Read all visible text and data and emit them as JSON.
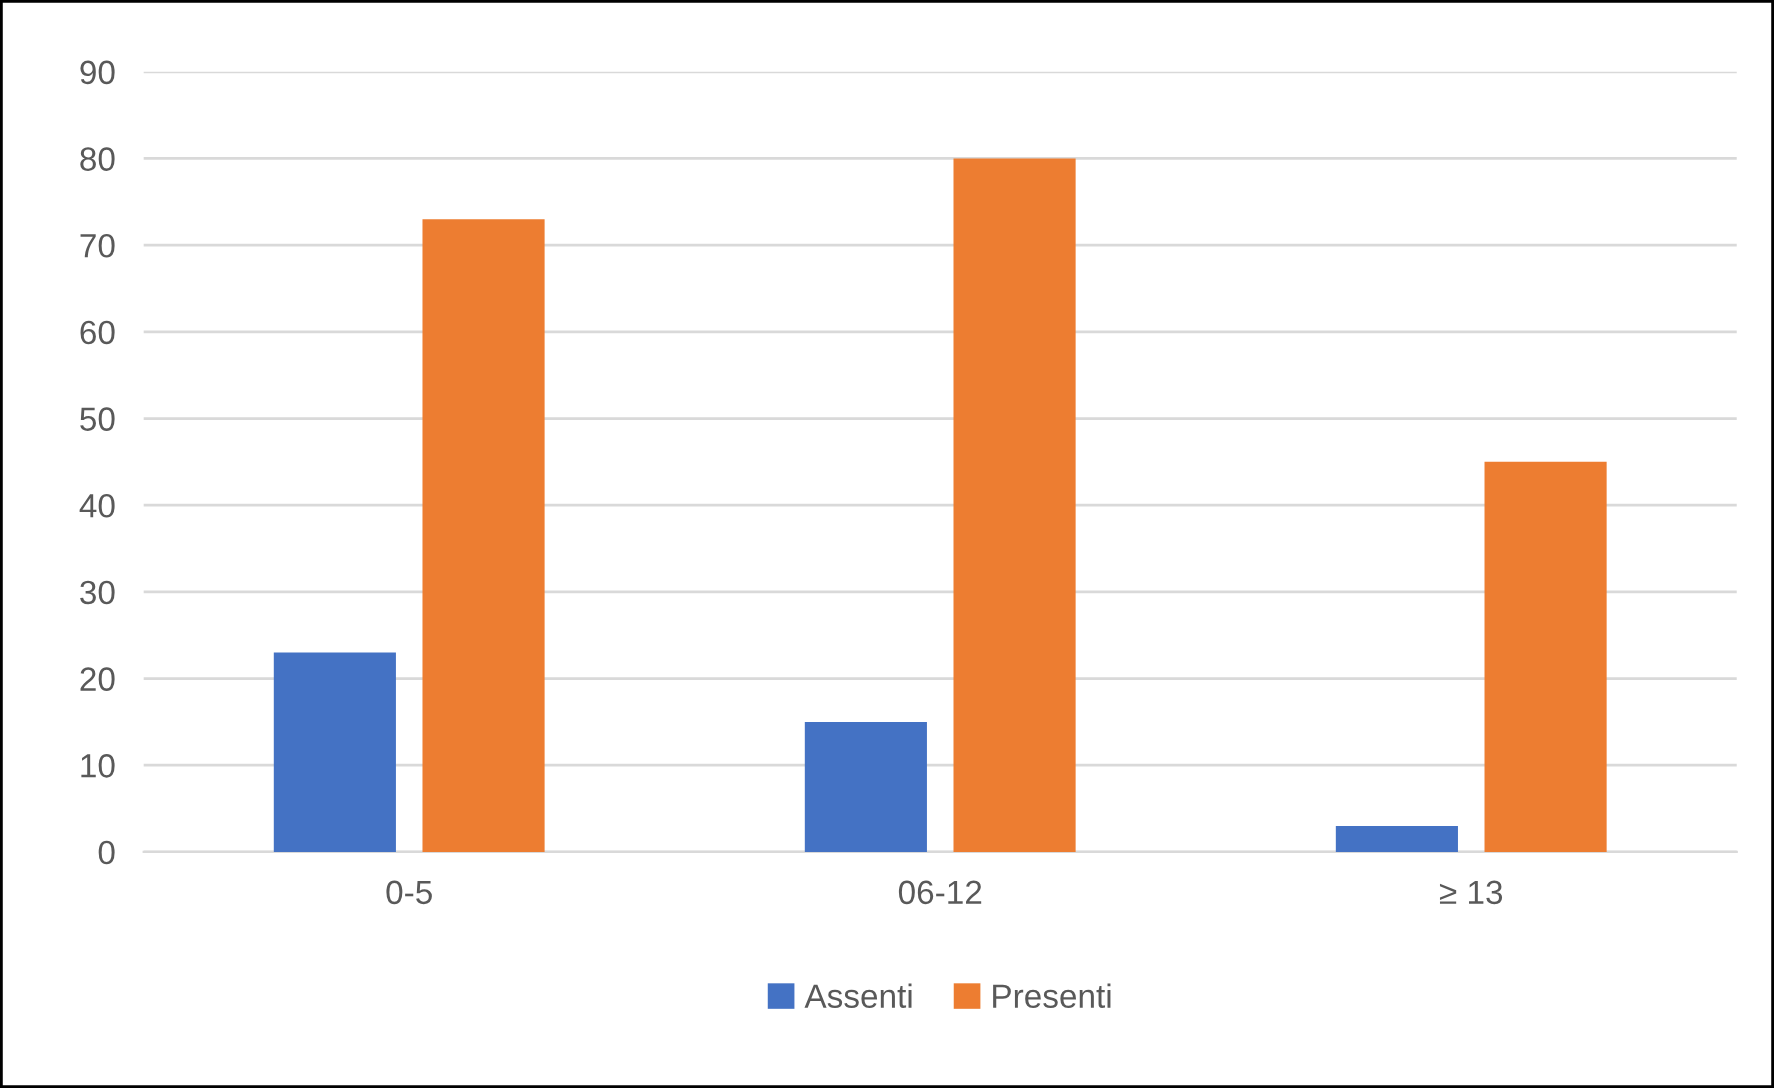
{
  "chart_data": {
    "type": "bar",
    "categories": [
      "0-5",
      "06-12",
      "≥ 13"
    ],
    "series": [
      {
        "name": "Assenti",
        "color": "#4472c4",
        "values": [
          23,
          15,
          3
        ]
      },
      {
        "name": "Presenti",
        "color": "#ed7d31",
        "values": [
          73,
          80,
          45
        ]
      }
    ],
    "ylim": [
      0,
      90
    ],
    "yticks": [
      0,
      10,
      20,
      30,
      40,
      50,
      60,
      70,
      80,
      90
    ],
    "grid": "y",
    "legend": "bottom"
  }
}
